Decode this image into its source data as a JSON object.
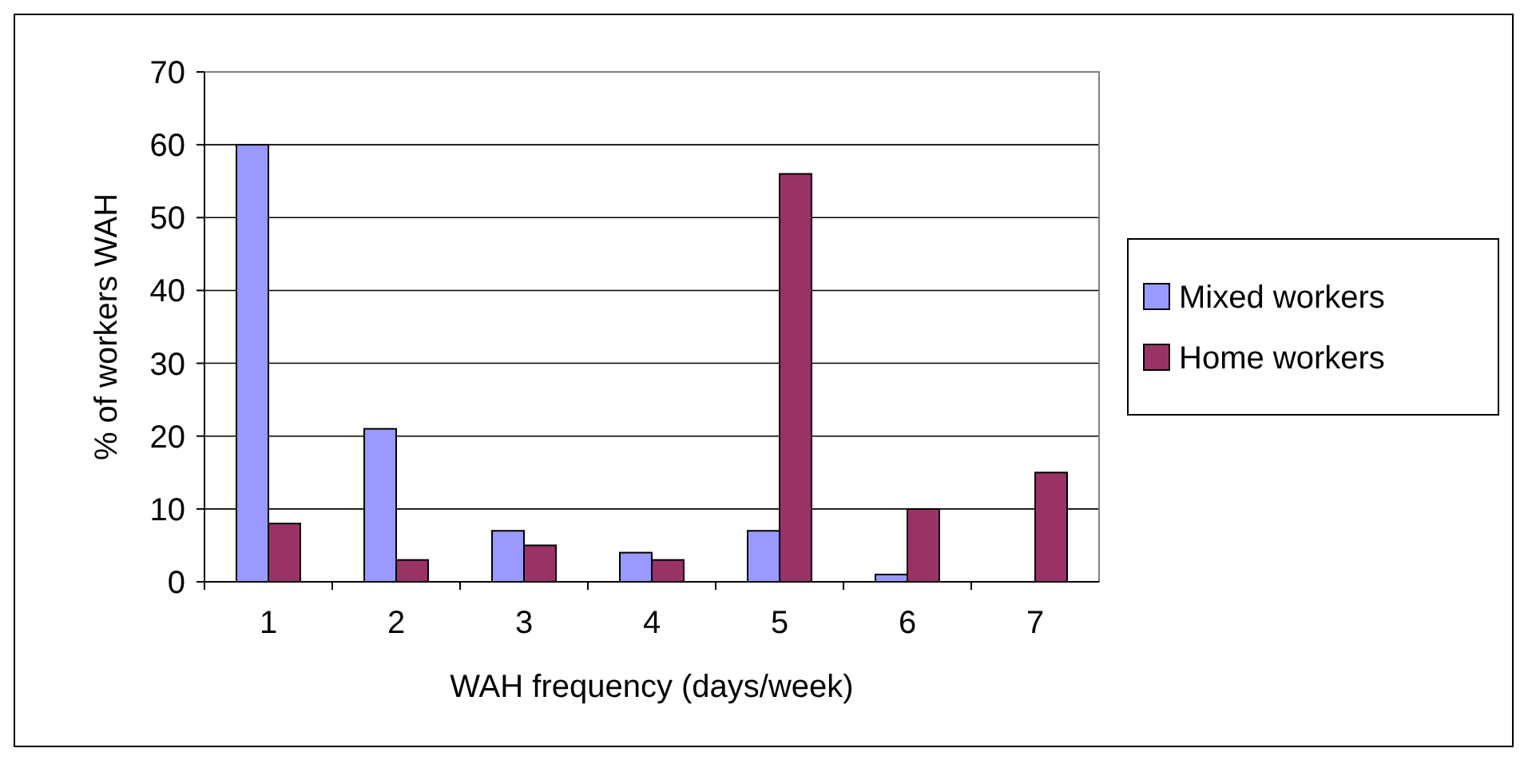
{
  "chart_data": {
    "type": "bar",
    "xlabel": "WAH frequency (days/week)",
    "ylabel": "% of workers WAH",
    "categories": [
      "1",
      "2",
      "3",
      "4",
      "5",
      "6",
      "7"
    ],
    "series": [
      {
        "name": "Mixed workers",
        "color": "#9999ff",
        "values": [
          60,
          21,
          7,
          4,
          7,
          1,
          0
        ]
      },
      {
        "name": "Home workers",
        "color": "#993366",
        "values": [
          8,
          3,
          5,
          3,
          56,
          10,
          15
        ]
      }
    ],
    "ylim": [
      0,
      70
    ],
    "yticks": [
      0,
      10,
      20,
      30,
      40,
      50,
      60,
      70
    ],
    "grid": "y",
    "legend": "right"
  }
}
